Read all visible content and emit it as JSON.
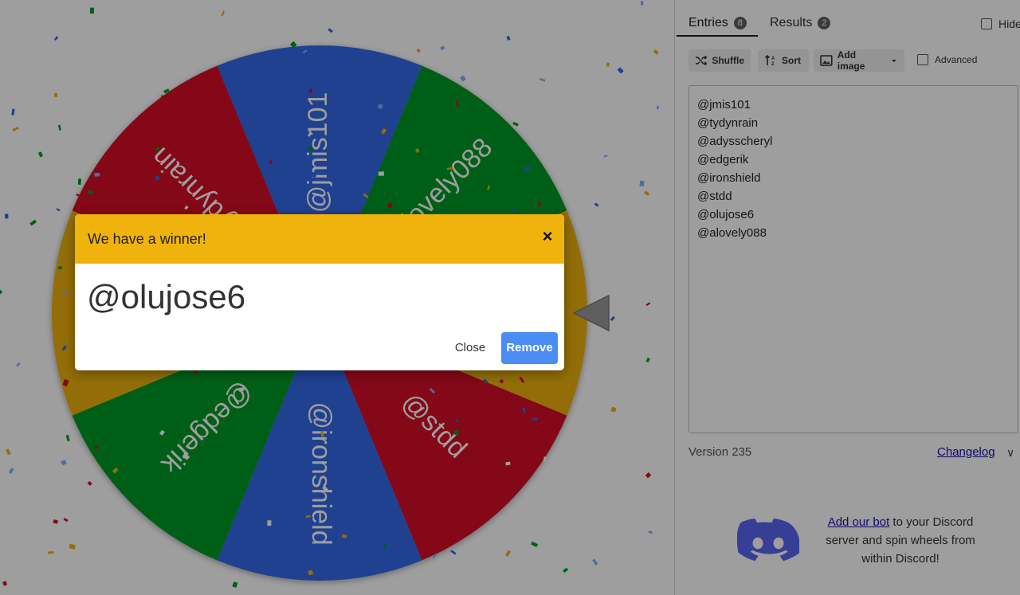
{
  "wheel": {
    "segments": [
      {
        "label": "@jmis101",
        "color": "#3369e8"
      },
      {
        "label": "@alovely088",
        "color": "#009925"
      },
      {
        "label": "@olujose6",
        "color": "#eeb211"
      },
      {
        "label": "@stdd",
        "color": "#d50f25"
      },
      {
        "label": "@ironshield",
        "color": "#3369e8"
      },
      {
        "label": "@edgerik",
        "color": "#009925"
      },
      {
        "label": "@adysscheryl",
        "color": "#eeb211"
      },
      {
        "label": "@tydynrain",
        "color": "#d50f25"
      }
    ],
    "pointer_color": "#9a9a9a"
  },
  "tabs": [
    {
      "label": "Entries",
      "count": "8"
    },
    {
      "label": "Results",
      "count": "2"
    }
  ],
  "hide_label": "Hide",
  "toolbar": {
    "shuffle_label": "Shuffle",
    "sort_label": "Sort",
    "add_image_label": "Add image",
    "advanced_label": "Advanced"
  },
  "entries": [
    "@jmis101",
    "@tydynrain",
    "@adysscheryl",
    "@edgerik",
    "@ironshield",
    "@stdd",
    "@olujose6",
    "@alovely088"
  ],
  "version_label": "Version 235",
  "changelog_label": "Changelog",
  "discord": {
    "link_text": "Add our bot",
    "text": " to your Discord server and spin wheels from within Discord!",
    "color": "#5865f2"
  },
  "dialog": {
    "title": "We have a winner!",
    "winner": "@olujose6",
    "close_label": "Close",
    "remove_label": "Remove",
    "header_color": "#f0b30d"
  }
}
